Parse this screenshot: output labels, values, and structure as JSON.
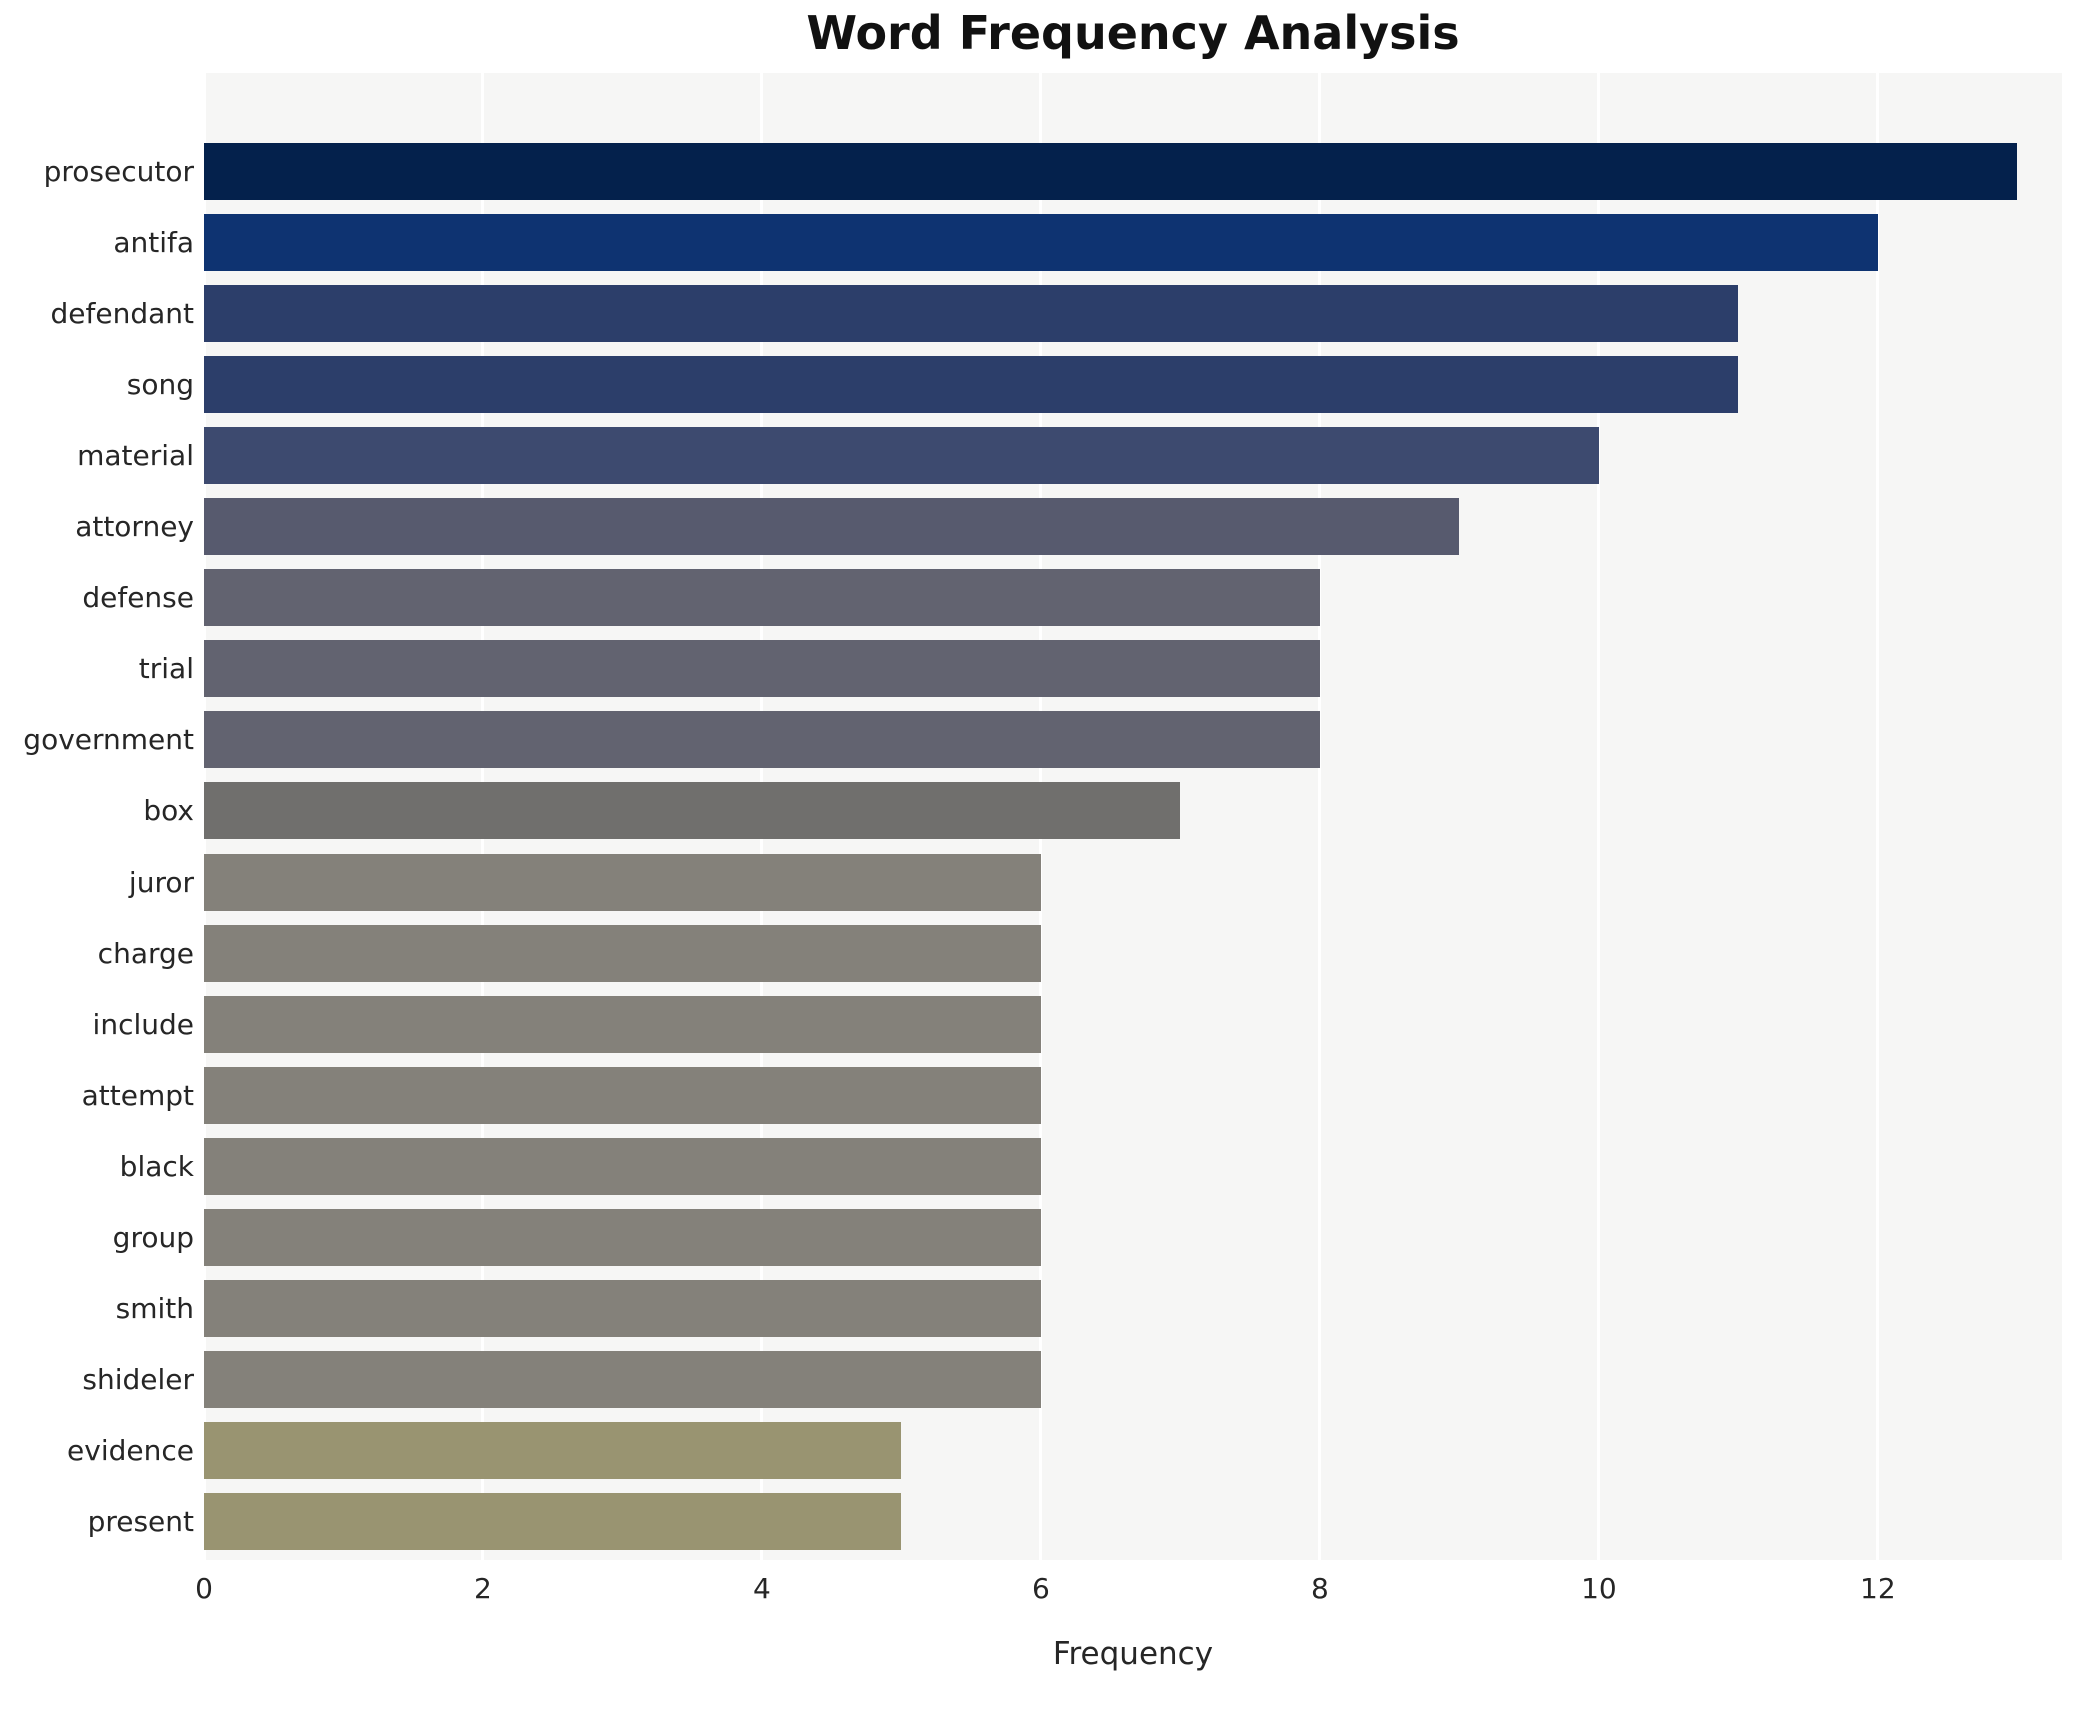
{
  "chart_data": {
    "type": "bar",
    "orientation": "horizontal",
    "title": "Word Frequency Analysis",
    "xlabel": "Frequency",
    "ylabel": "",
    "categories": [
      "prosecutor",
      "antifa",
      "defendant",
      "song",
      "material",
      "attorney",
      "defense",
      "trial",
      "government",
      "box",
      "juror",
      "charge",
      "include",
      "attempt",
      "black",
      "group",
      "smith",
      "shideler",
      "evidence",
      "present"
    ],
    "values": [
      13,
      12,
      11,
      11,
      10,
      9,
      8,
      8,
      8,
      7,
      6,
      6,
      6,
      6,
      6,
      6,
      6,
      6,
      5,
      5
    ],
    "bar_colors": [
      "#04214c",
      "#0e3371",
      "#2c3e6a",
      "#2c3e6a",
      "#3d4a6f",
      "#575a6e",
      "#626370",
      "#626370",
      "#626370",
      "#706f6d",
      "#84817a",
      "#84817a",
      "#84817a",
      "#84817a",
      "#84817a",
      "#84817a",
      "#84817a",
      "#84817a",
      "#999471",
      "#999471"
    ],
    "x_ticks": [
      0,
      2,
      4,
      6,
      8,
      10,
      12
    ],
    "xlim": [
      0,
      13.32
    ],
    "grid": true,
    "legend": "none",
    "plot_background": "#f6f6f5",
    "grid_color": "#ffffff",
    "title_color": "#111111",
    "tick_label_color": "#262626"
  }
}
